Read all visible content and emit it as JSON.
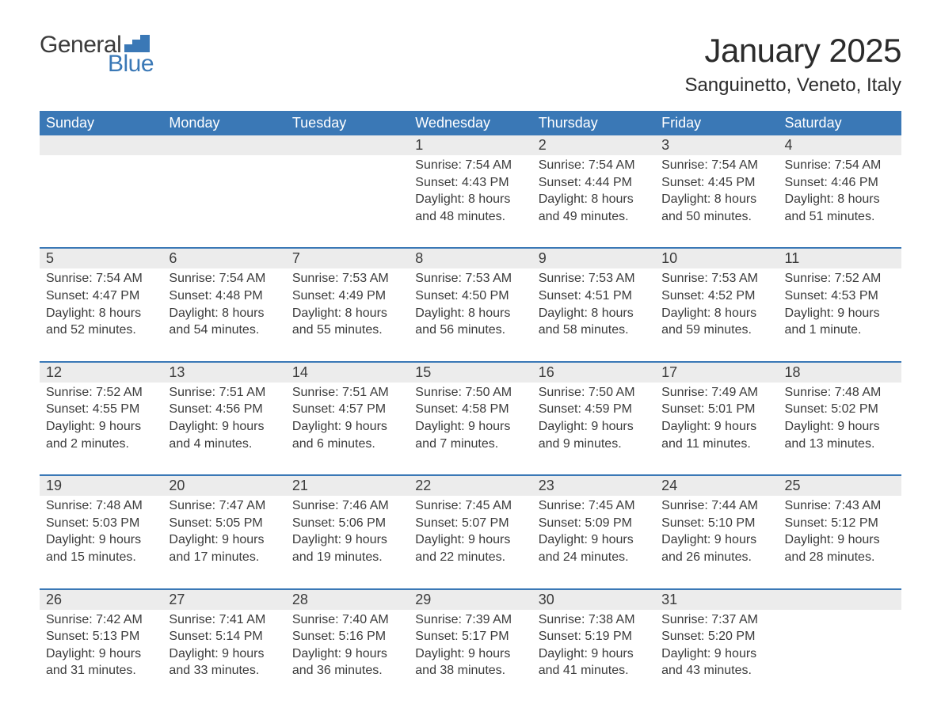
{
  "brand": {
    "word1": "General",
    "word2": "Blue",
    "flag_color": "#3a78b6"
  },
  "title": "January 2025",
  "location": "Sanguinetto, Veneto, Italy",
  "colors": {
    "header_bg": "#3a78b6",
    "header_text": "#ffffff",
    "daynum_bg": "#ececec",
    "row_border": "#3a78b6",
    "text": "#3b3b3b",
    "page_bg": "#ffffff"
  },
  "fonts": {
    "title_size_pt": 32,
    "location_size_pt": 18,
    "weekday_size_pt": 14,
    "daynum_size_pt": 14,
    "body_size_pt": 12
  },
  "weekdays": [
    "Sunday",
    "Monday",
    "Tuesday",
    "Wednesday",
    "Thursday",
    "Friday",
    "Saturday"
  ],
  "weeks": [
    [
      null,
      null,
      null,
      {
        "n": "1",
        "sunrise": "7:54 AM",
        "sunset": "4:43 PM",
        "daylight": "8 hours and 48 minutes."
      },
      {
        "n": "2",
        "sunrise": "7:54 AM",
        "sunset": "4:44 PM",
        "daylight": "8 hours and 49 minutes."
      },
      {
        "n": "3",
        "sunrise": "7:54 AM",
        "sunset": "4:45 PM",
        "daylight": "8 hours and 50 minutes."
      },
      {
        "n": "4",
        "sunrise": "7:54 AM",
        "sunset": "4:46 PM",
        "daylight": "8 hours and 51 minutes."
      }
    ],
    [
      {
        "n": "5",
        "sunrise": "7:54 AM",
        "sunset": "4:47 PM",
        "daylight": "8 hours and 52 minutes."
      },
      {
        "n": "6",
        "sunrise": "7:54 AM",
        "sunset": "4:48 PM",
        "daylight": "8 hours and 54 minutes."
      },
      {
        "n": "7",
        "sunrise": "7:53 AM",
        "sunset": "4:49 PM",
        "daylight": "8 hours and 55 minutes."
      },
      {
        "n": "8",
        "sunrise": "7:53 AM",
        "sunset": "4:50 PM",
        "daylight": "8 hours and 56 minutes."
      },
      {
        "n": "9",
        "sunrise": "7:53 AM",
        "sunset": "4:51 PM",
        "daylight": "8 hours and 58 minutes."
      },
      {
        "n": "10",
        "sunrise": "7:53 AM",
        "sunset": "4:52 PM",
        "daylight": "8 hours and 59 minutes."
      },
      {
        "n": "11",
        "sunrise": "7:52 AM",
        "sunset": "4:53 PM",
        "daylight": "9 hours and 1 minute."
      }
    ],
    [
      {
        "n": "12",
        "sunrise": "7:52 AM",
        "sunset": "4:55 PM",
        "daylight": "9 hours and 2 minutes."
      },
      {
        "n": "13",
        "sunrise": "7:51 AM",
        "sunset": "4:56 PM",
        "daylight": "9 hours and 4 minutes."
      },
      {
        "n": "14",
        "sunrise": "7:51 AM",
        "sunset": "4:57 PM",
        "daylight": "9 hours and 6 minutes."
      },
      {
        "n": "15",
        "sunrise": "7:50 AM",
        "sunset": "4:58 PM",
        "daylight": "9 hours and 7 minutes."
      },
      {
        "n": "16",
        "sunrise": "7:50 AM",
        "sunset": "4:59 PM",
        "daylight": "9 hours and 9 minutes."
      },
      {
        "n": "17",
        "sunrise": "7:49 AM",
        "sunset": "5:01 PM",
        "daylight": "9 hours and 11 minutes."
      },
      {
        "n": "18",
        "sunrise": "7:48 AM",
        "sunset": "5:02 PM",
        "daylight": "9 hours and 13 minutes."
      }
    ],
    [
      {
        "n": "19",
        "sunrise": "7:48 AM",
        "sunset": "5:03 PM",
        "daylight": "9 hours and 15 minutes."
      },
      {
        "n": "20",
        "sunrise": "7:47 AM",
        "sunset": "5:05 PM",
        "daylight": "9 hours and 17 minutes."
      },
      {
        "n": "21",
        "sunrise": "7:46 AM",
        "sunset": "5:06 PM",
        "daylight": "9 hours and 19 minutes."
      },
      {
        "n": "22",
        "sunrise": "7:45 AM",
        "sunset": "5:07 PM",
        "daylight": "9 hours and 22 minutes."
      },
      {
        "n": "23",
        "sunrise": "7:45 AM",
        "sunset": "5:09 PM",
        "daylight": "9 hours and 24 minutes."
      },
      {
        "n": "24",
        "sunrise": "7:44 AM",
        "sunset": "5:10 PM",
        "daylight": "9 hours and 26 minutes."
      },
      {
        "n": "25",
        "sunrise": "7:43 AM",
        "sunset": "5:12 PM",
        "daylight": "9 hours and 28 minutes."
      }
    ],
    [
      {
        "n": "26",
        "sunrise": "7:42 AM",
        "sunset": "5:13 PM",
        "daylight": "9 hours and 31 minutes."
      },
      {
        "n": "27",
        "sunrise": "7:41 AM",
        "sunset": "5:14 PM",
        "daylight": "9 hours and 33 minutes."
      },
      {
        "n": "28",
        "sunrise": "7:40 AM",
        "sunset": "5:16 PM",
        "daylight": "9 hours and 36 minutes."
      },
      {
        "n": "29",
        "sunrise": "7:39 AM",
        "sunset": "5:17 PM",
        "daylight": "9 hours and 38 minutes."
      },
      {
        "n": "30",
        "sunrise": "7:38 AM",
        "sunset": "5:19 PM",
        "daylight": "9 hours and 41 minutes."
      },
      {
        "n": "31",
        "sunrise": "7:37 AM",
        "sunset": "5:20 PM",
        "daylight": "9 hours and 43 minutes."
      },
      null
    ]
  ],
  "labels": {
    "sunrise": "Sunrise: ",
    "sunset": "Sunset: ",
    "daylight": "Daylight: "
  }
}
